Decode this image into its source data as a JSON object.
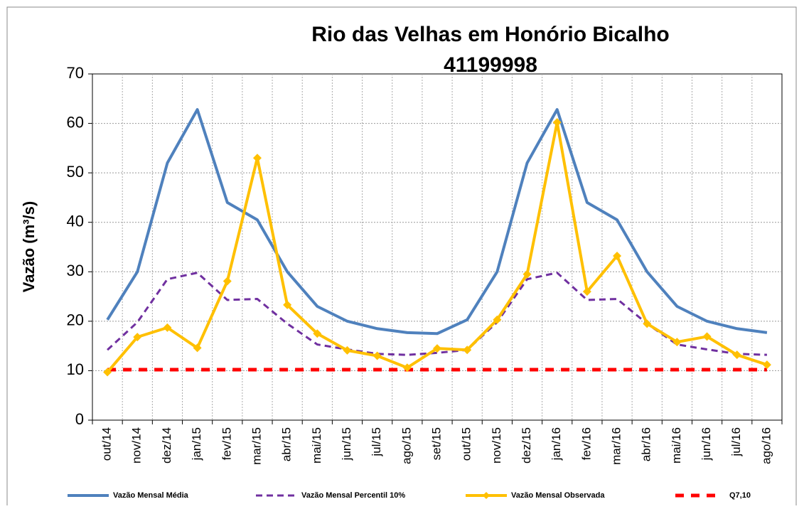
{
  "chart_data": {
    "type": "line",
    "title": [
      "Rio das Velhas em Honório Bicalho",
      "41199998"
    ],
    "y_label": "Vazão (m³/s)",
    "categories": [
      "out/14",
      "nov/14",
      "dez/14",
      "jan/15",
      "fev/15",
      "mar/15",
      "abr/15",
      "mai/15",
      "jun/15",
      "jul/15",
      "ago/15",
      "set/15",
      "out/15",
      "nov/15",
      "dez/15",
      "jan/16",
      "fev/16",
      "mar/16",
      "abr/16",
      "mai/16",
      "jun/16",
      "jul/16",
      "ago/16"
    ],
    "series": [
      {
        "name": "Vazão Mensal Média",
        "color": "#4f81bd",
        "dash": "solid",
        "marker": "none",
        "values": [
          20.3,
          30,
          52,
          62.8,
          44,
          40.5,
          30,
          23,
          20,
          18.5,
          17.7,
          17.5,
          20.3,
          30,
          52,
          62.8,
          44,
          40.5,
          30,
          23,
          20,
          18.5,
          17.7
        ]
      },
      {
        "name": "Vazão Mensal Percentil 10%",
        "color": "#7030a0",
        "dash": "dashed",
        "marker": "none",
        "values": [
          14.2,
          19.8,
          28.5,
          29.8,
          24.3,
          24.5,
          19.5,
          15.3,
          14.3,
          13.4,
          13.2,
          13.6,
          14.2,
          19.8,
          28.5,
          29.8,
          24.3,
          24.5,
          19.5,
          15.3,
          14.3,
          13.4,
          13.2
        ]
      },
      {
        "name": "Vazão Mensal Observada",
        "color": "#ffc000",
        "dash": "solid",
        "marker": "diamond",
        "values": [
          9.7,
          16.8,
          18.7,
          14.6,
          28.1,
          53,
          23.3,
          17.5,
          14.1,
          13,
          10.6,
          14.5,
          14.2,
          20.3,
          29.5,
          60.2,
          26,
          33.2,
          19.5,
          15.8,
          16.9,
          13.2,
          11.2
        ]
      },
      {
        "name": "Q7,10",
        "color": "#ff0000",
        "dash": "dashed-thick",
        "marker": "none",
        "values": [
          10.2,
          10.2,
          10.2,
          10.2,
          10.2,
          10.2,
          10.2,
          10.2,
          10.2,
          10.2,
          10.2,
          10.2,
          10.2,
          10.2,
          10.2,
          10.2,
          10.2,
          10.2,
          10.2,
          10.2,
          10.2,
          10.2,
          10.2
        ]
      }
    ],
    "ylim": [
      0,
      70
    ],
    "yticks": [
      0,
      10,
      20,
      30,
      40,
      50,
      60,
      70
    ],
    "grid": true,
    "legend": "bottom"
  }
}
